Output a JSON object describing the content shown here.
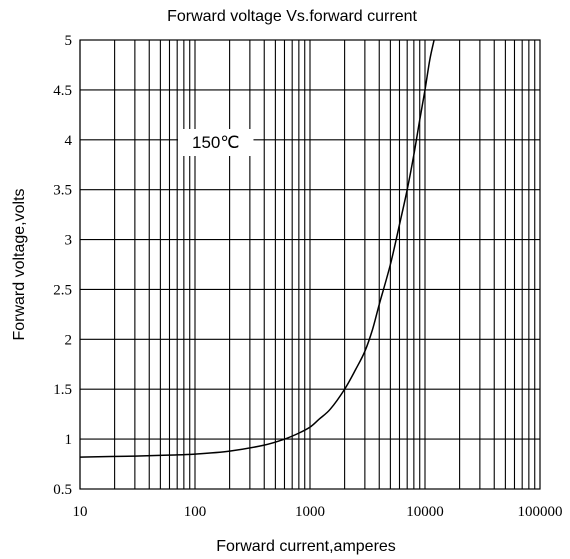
{
  "chart_data": {
    "type": "line",
    "title": "Forward  voltage Vs.forward  current",
    "xlabel": "Forward  current,amperes",
    "ylabel": "Forward  voltage,volts",
    "x_scale": "log",
    "xlim": [
      10,
      100000
    ],
    "ylim": [
      0.5,
      5
    ],
    "x_ticks": [
      10,
      100,
      1000,
      10000,
      100000
    ],
    "x_tick_labels": [
      "10",
      "100",
      "1000",
      "10000",
      "100000"
    ],
    "y_ticks": [
      0.5,
      1,
      1.5,
      2,
      2.5,
      3,
      3.5,
      4,
      4.5,
      5
    ],
    "y_tick_labels": [
      "0.5",
      "1",
      "1.5",
      "2",
      "2.5",
      "3",
      "3.5",
      "4",
      "4.5",
      "5"
    ],
    "grid": true,
    "annotation": "150℃",
    "colors": {
      "line": "#000000",
      "grid": "#000000",
      "background": "#ffffff"
    },
    "series": [
      {
        "x": [
          10,
          30,
          60,
          100,
          200,
          400,
          600,
          800,
          1000,
          1200,
          1500,
          2000,
          2500,
          3000,
          3500,
          4000,
          5000,
          6000,
          7000,
          8000,
          9000,
          10000,
          11000,
          12000
        ],
        "y": [
          0.82,
          0.83,
          0.84,
          0.85,
          0.88,
          0.94,
          1.0,
          1.06,
          1.12,
          1.2,
          1.3,
          1.5,
          1.7,
          1.88,
          2.1,
          2.35,
          2.75,
          3.15,
          3.5,
          3.85,
          4.2,
          4.5,
          4.8,
          5.0
        ]
      }
    ]
  }
}
